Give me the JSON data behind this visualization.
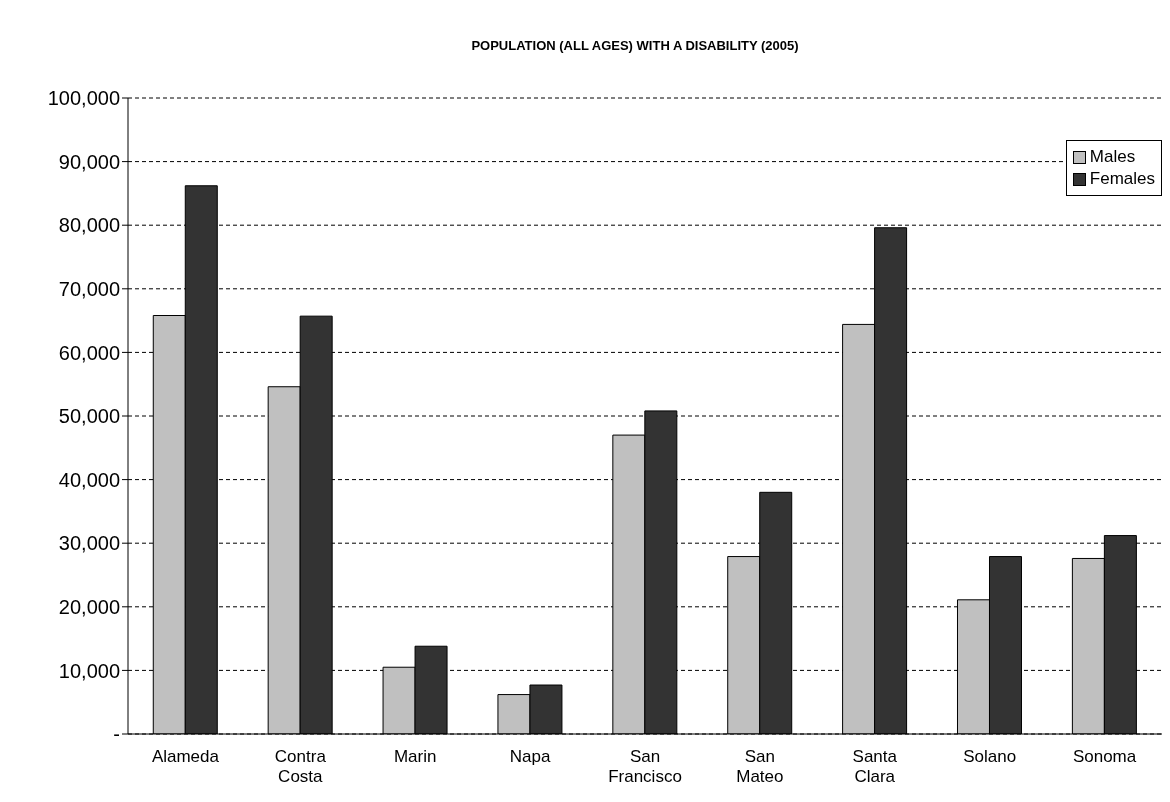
{
  "chart_data": {
    "type": "bar",
    "title": "POPULATION (ALL AGES) WITH A DISABILITY (2005)",
    "categories": [
      "Alameda",
      "Contra Costa",
      "Marin",
      "Napa",
      "San Francisco",
      "San Mateo",
      "Santa Clara",
      "Solano",
      "Sonoma"
    ],
    "series": [
      {
        "name": "Males",
        "color": "#c0c0c0",
        "values": [
          65800,
          54600,
          10500,
          6200,
          47000,
          27900,
          64400,
          21100,
          27600
        ]
      },
      {
        "name": "Females",
        "color": "#333333",
        "values": [
          86200,
          65700,
          13800,
          7700,
          50800,
          38000,
          79600,
          27900,
          31200
        ]
      }
    ],
    "ylim": [
      0,
      100000
    ],
    "yticks": [
      {
        "value": 0,
        "label": "-"
      },
      {
        "value": 10000,
        "label": "10,000"
      },
      {
        "value": 20000,
        "label": "20,000"
      },
      {
        "value": 30000,
        "label": "30,000"
      },
      {
        "value": 40000,
        "label": "40,000"
      },
      {
        "value": 50000,
        "label": "50,000"
      },
      {
        "value": 60000,
        "label": "60,000"
      },
      {
        "value": 70000,
        "label": "70,000"
      },
      {
        "value": 80000,
        "label": "80,000"
      },
      {
        "value": 90000,
        "label": "90,000"
      },
      {
        "value": 100000,
        "label": "100,000"
      }
    ],
    "grid": "y",
    "legend": "top right"
  }
}
